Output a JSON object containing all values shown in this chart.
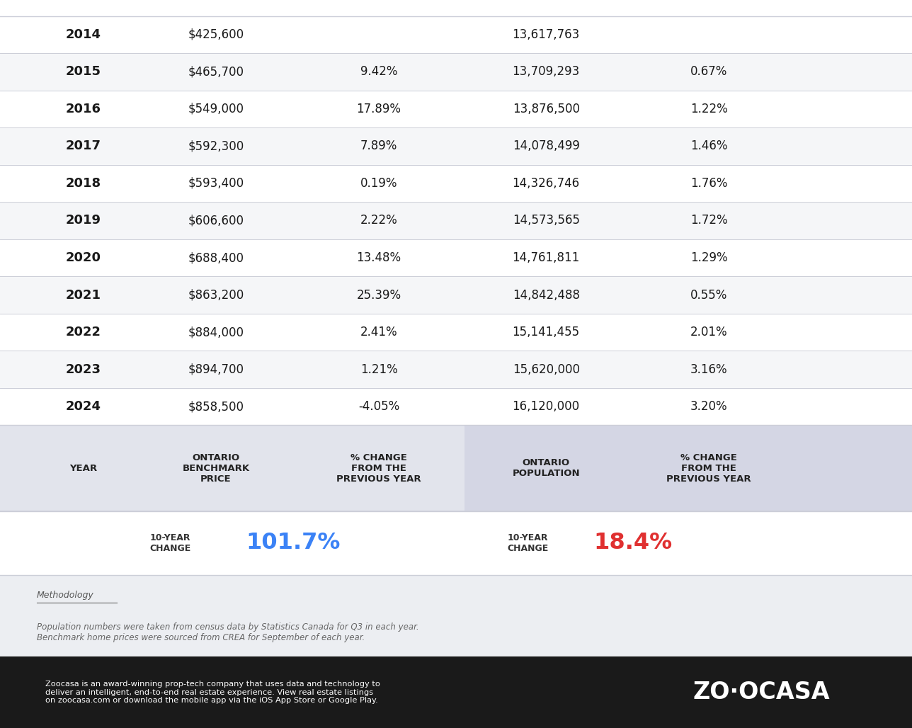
{
  "headers": [
    "YEAR",
    "ONTARIO\nBENCHMARK\nPRICE",
    "% CHANGE\nFROM THE\nPREVIOUS YEAR",
    "ONTARIO\nPOPULATION",
    "% CHANGE\nFROM THE\nPREVIOUS YEAR"
  ],
  "rows": [
    [
      "2014",
      "$425,600",
      "",
      "13,617,763",
      ""
    ],
    [
      "2015",
      "$465,700",
      "9.42%",
      "13,709,293",
      "0.67%"
    ],
    [
      "2016",
      "$549,000",
      "17.89%",
      "13,876,500",
      "1.22%"
    ],
    [
      "2017",
      "$592,300",
      "7.89%",
      "14,078,499",
      "1.46%"
    ],
    [
      "2018",
      "$593,400",
      "0.19%",
      "14,326,746",
      "1.76%"
    ],
    [
      "2019",
      "$606,600",
      "2.22%",
      "14,573,565",
      "1.72%"
    ],
    [
      "2020",
      "$688,400",
      "13.48%",
      "14,761,811",
      "1.29%"
    ],
    [
      "2021",
      "$863,200",
      "25.39%",
      "14,842,488",
      "0.55%"
    ],
    [
      "2022",
      "$884,000",
      "2.41%",
      "15,141,455",
      "2.01%"
    ],
    [
      "2023",
      "$894,700",
      "1.21%",
      "15,620,000",
      "3.16%"
    ],
    [
      "2024",
      "$858,500",
      "-4.05%",
      "16,120,000",
      "3.20%"
    ]
  ],
  "ten_year_price_change": "101.7%",
  "ten_year_pop_change": "18.4%",
  "ten_year_price_color": "#3b82f6",
  "ten_year_pop_color": "#e03030",
  "header_bg_left": "#e2e4ec",
  "header_bg_right": "#d4d6e4",
  "row_bg_even": "#ffffff",
  "row_bg_odd": "#f5f6f8",
  "separator_color": "#ccced8",
  "text_color": "#1a1a1a",
  "footer_bg": "#1a1a1a",
  "methodology_bg": "#eceef2",
  "methodology_title": "Methodology",
  "methodology_text": "Population numbers were taken from census data by Statistics Canada for Q3 in each year.\nBenchmark home prices were sourced from CREA for September of each year.",
  "footer_text": "Zoocasa is an award-winning prop-tech company that uses data and technology to\ndeliver an intelligent, end-to-end real estate experience. View real estate listings\non zoocasa.com or download the mobile app via the iOS App Store or Google Play.",
  "zoocasa_logo": "ZO·OCASA",
  "col_starts": [
    0.0,
    0.13,
    0.31,
    0.51,
    0.7
  ],
  "col_ends": [
    0.13,
    0.31,
    0.51,
    0.7,
    0.89
  ]
}
